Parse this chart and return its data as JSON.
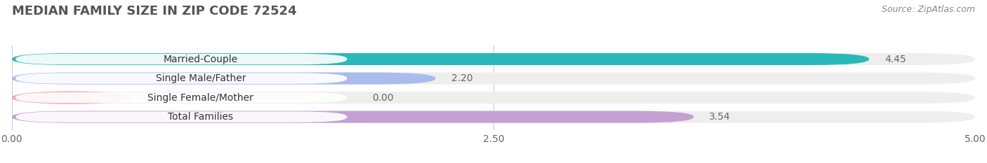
{
  "title": "MEDIAN FAMILY SIZE IN ZIP CODE 72524",
  "source": "Source: ZipAtlas.com",
  "categories": [
    "Married-Couple",
    "Single Male/Father",
    "Single Female/Mother",
    "Total Families"
  ],
  "values": [
    4.45,
    2.2,
    0.0,
    3.54
  ],
  "bar_colors": [
    "#2ab8b8",
    "#aabcec",
    "#f5a8bc",
    "#c4a0d4"
  ],
  "xlim": [
    0,
    5.0
  ],
  "xticks": [
    0.0,
    2.5,
    5.0
  ],
  "background_color": "#ffffff",
  "track_color": "#eeeeee",
  "title_fontsize": 13,
  "source_fontsize": 9,
  "label_fontsize": 10,
  "value_fontsize": 10
}
